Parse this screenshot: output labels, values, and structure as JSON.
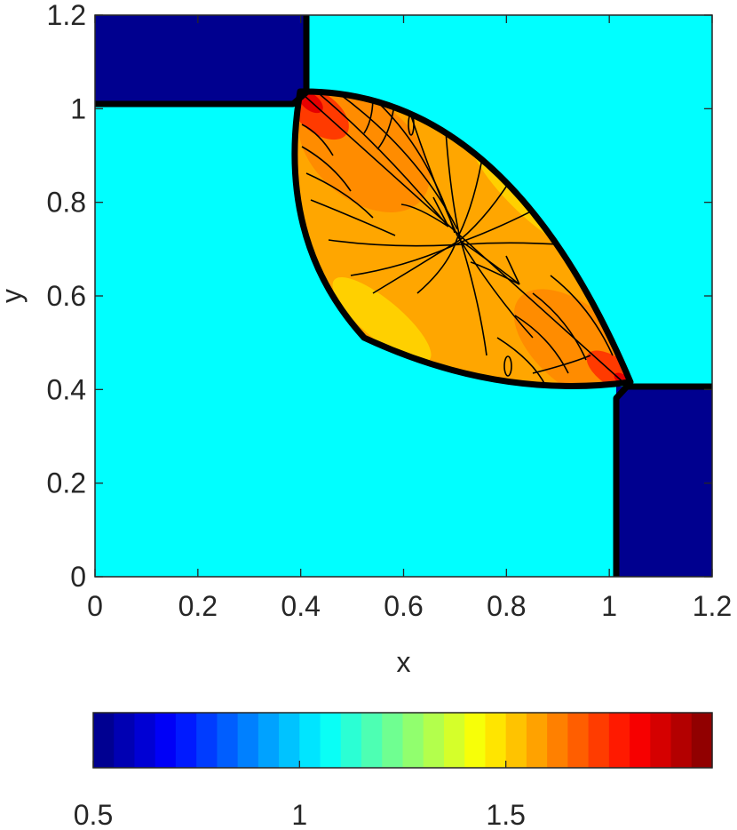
{
  "chart_data": {
    "type": "contour",
    "title": "",
    "xlabel": "x",
    "ylabel": "y",
    "xlim": [
      0,
      1.2
    ],
    "ylim": [
      0,
      1.2
    ],
    "x_ticks": [
      "0",
      "0.2",
      "0.4",
      "0.6",
      "0.8",
      "1",
      "1.2"
    ],
    "y_ticks": [
      "0",
      "0.2",
      "0.4",
      "0.6",
      "0.8",
      "1",
      "1.2"
    ],
    "colorbar": {
      "orientation": "horizontal",
      "position": "bottom",
      "range": [
        0.5,
        2.0
      ],
      "tick_labels": [
        "0.5",
        "1",
        "1.5"
      ],
      "tick_values": [
        0.5,
        1.0,
        1.5
      ],
      "levels": 30,
      "colormap": "jet"
    },
    "regions": [
      {
        "name": "background",
        "approx_value": 1.0,
        "color": "#00ffff"
      },
      {
        "name": "upper-left block",
        "x": [
          0,
          0.4
        ],
        "y": [
          1.0,
          1.2
        ],
        "approx_value": 0.5,
        "color": "#00008f"
      },
      {
        "name": "lower-right block",
        "x": [
          1.0,
          1.2
        ],
        "y": [
          0,
          0.4
        ],
        "approx_value": 0.5,
        "color": "#00008f"
      },
      {
        "name": "central lens",
        "approx_value_range": [
          1.5,
          1.95
        ]
      }
    ],
    "grid": false
  }
}
